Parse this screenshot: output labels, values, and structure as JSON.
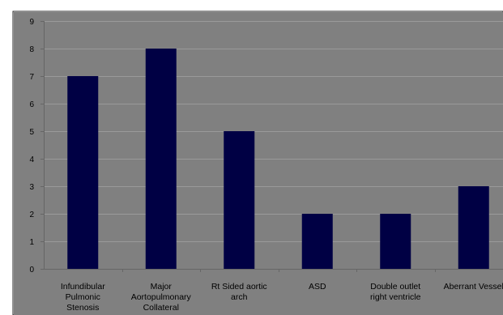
{
  "chart_data": {
    "type": "bar",
    "title": "",
    "xlabel": "",
    "ylabel": "",
    "categories": [
      [
        "Infundibular",
        "Pulmonic",
        "Stenosis"
      ],
      [
        "Major",
        "Aortopulmonary",
        "Collateral"
      ],
      [
        "Rt Sided aortic",
        "arch"
      ],
      [
        "ASD"
      ],
      [
        "Double outlet",
        "right ventricle"
      ],
      [
        "Aberrant Vessel"
      ]
    ],
    "values": [
      7,
      8,
      5,
      2,
      2,
      3
    ],
    "ylim": [
      0,
      9
    ],
    "yticks": [
      "0",
      "1",
      "2",
      "3",
      "4",
      "5",
      "6",
      "7",
      "8",
      "9"
    ],
    "grid": true,
    "legend": "none",
    "colors": {
      "bar": "#000044",
      "plot_background": "#808080",
      "gridline": "#9a9a9a",
      "axis": "#666666",
      "text": "#000000"
    }
  }
}
